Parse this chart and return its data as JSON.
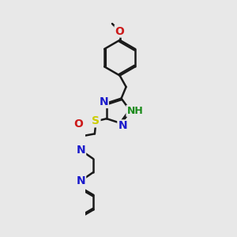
{
  "bg_color": "#e8e8e8",
  "bond_color": "#1a1a1a",
  "bond_width": 1.8,
  "atom_colors": {
    "N": "#1a1acc",
    "O": "#cc1a1a",
    "S": "#cccc00",
    "NH": "#1a8a1a",
    "C": "#1a1a1a"
  },
  "font_size_atom": 10,
  "fig_w": 3.0,
  "fig_h": 3.0,
  "dpi": 100
}
